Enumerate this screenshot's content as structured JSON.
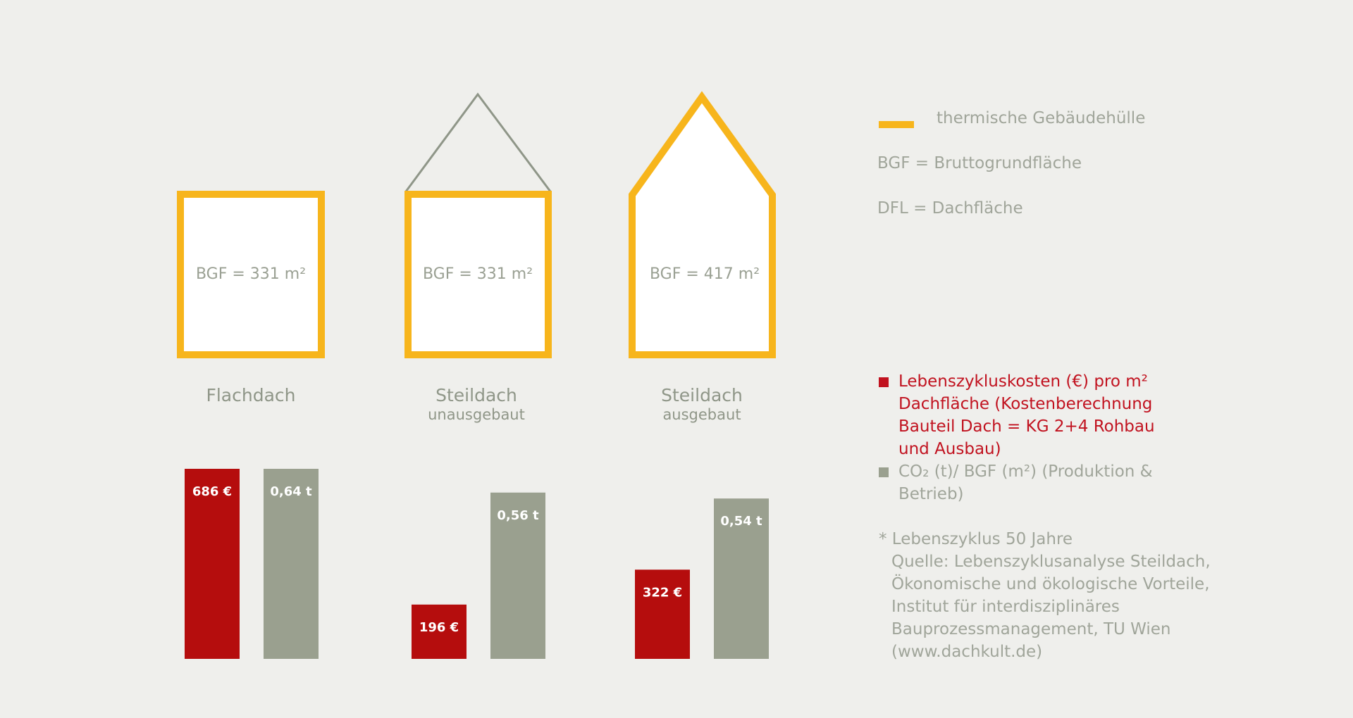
{
  "colors": {
    "background": "#efefec",
    "envelope": "#f7b51c",
    "roof_outline": "#8f9688",
    "cost": "#b50d0d",
    "co2": "#9aa08f",
    "text_gray": "#a0a59a",
    "text_red": "#c1121f"
  },
  "houses": [
    {
      "name": "Flachdach",
      "subtitle": "",
      "bgf": "BGF = 331 m²",
      "roof": "flat"
    },
    {
      "name": "Steildach",
      "subtitle": "unausgebaut",
      "bgf": "BGF = 331 m²",
      "roof": "unheated-pitched"
    },
    {
      "name": "Steildach",
      "subtitle": "ausgebaut",
      "bgf": "BGF = 417 m²",
      "roof": "heated-pitched"
    }
  ],
  "legend": {
    "envelope_label": "thermische Gebäudehülle",
    "bgf_def": "BGF = Bruttogrundfläche",
    "dfl_def": "DFL = Dachfläche"
  },
  "series_legend": {
    "cost_label": "Lebenszykluskosten (€) pro m² Dachfläche (Kostenberechnung Bauteil Dach = KG 2+4 Rohbau und Ausbau)",
    "cost_lines": [
      "Lebenszykluskosten (€) pro m²",
      "Dachfläche (Kostenberechnung",
      "Bauteil Dach = KG 2+4 Rohbau",
      "und Ausbau)"
    ],
    "co2_lines": [
      "CO₂ (t)/ BGF (m²) (Produktion &",
      "Betrieb)"
    ]
  },
  "footnote": {
    "lines": [
      "* Lebenszyklus 50 Jahre",
      "Quelle: Lebenszyklusanalyse Steildach,",
      "Ökonomische und ökologische Vorteile,",
      "Institut für interdisziplinäres",
      "Bauprozessmanagement, TU Wien",
      "(www.dachkult.de)"
    ]
  },
  "chart_data": {
    "type": "bar",
    "categories": [
      "Flachdach",
      "Steildach unausgebaut",
      "Steildach ausgebaut"
    ],
    "series": [
      {
        "name": "Lebenszykluskosten (€) pro m² Dachfläche",
        "values": [
          686,
          196,
          322
        ],
        "labels": [
          "686 €",
          "196 €",
          "322 €"
        ],
        "color": "#b50d0d"
      },
      {
        "name": "CO₂ (t)/ BGF (m²)",
        "values": [
          0.64,
          0.56,
          0.54
        ],
        "labels": [
          "0,64 t",
          "0,56 t",
          "0,54 t"
        ],
        "color": "#9aa08f"
      }
    ],
    "title": "",
    "xlabel": "",
    "ylabel": "",
    "grid": false
  }
}
